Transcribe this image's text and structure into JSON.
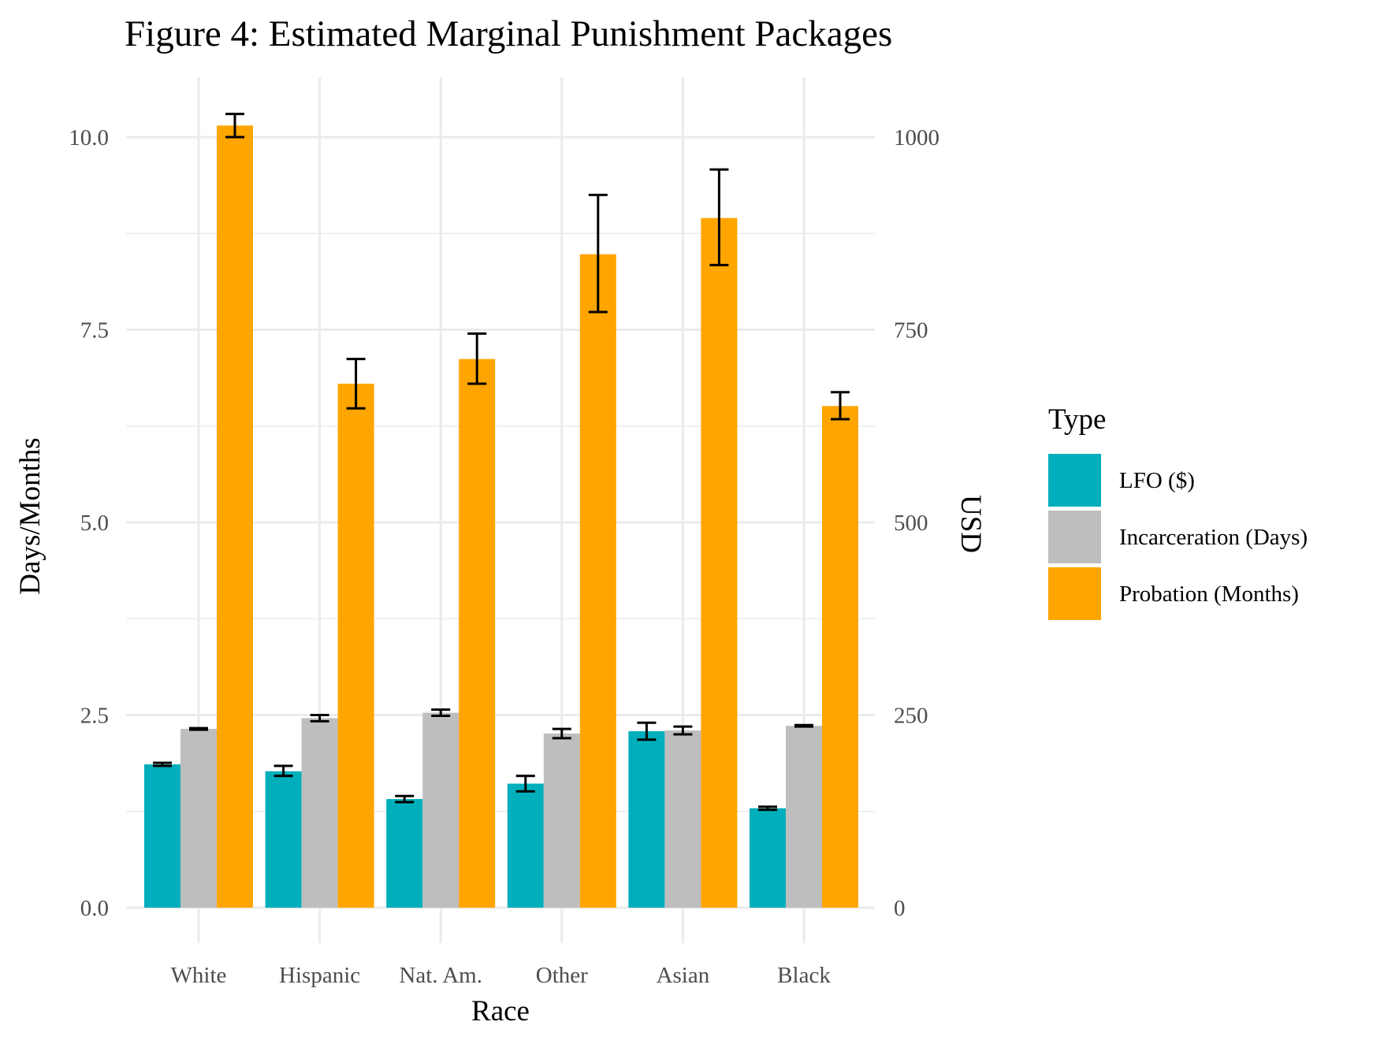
{
  "chart_data": {
    "type": "bar",
    "title": "Figure 4: Estimated Marginal Punishment Packages",
    "xlabel": "Race",
    "ylabel": "Days/Months",
    "y2label": "USD",
    "categories": [
      "White",
      "Hispanic",
      "Nat. Am.",
      "Other",
      "Asian",
      "Black"
    ],
    "ylim": [
      0,
      10.6
    ],
    "y_ticks": [
      "0.0",
      "2.5",
      "5.0",
      "7.5",
      "10.0"
    ],
    "y2_ticks": [
      "0",
      "250",
      "500",
      "750",
      "1000"
    ],
    "y2_scale": 100,
    "grid": true,
    "legend": {
      "title": "Type",
      "position": "right"
    },
    "series": [
      {
        "name": "LFO ($)",
        "color": "#00AFBB",
        "values": [
          1.86,
          1.77,
          1.41,
          1.61,
          2.29,
          1.29
        ],
        "err_low": [
          1.84,
          1.71,
          1.37,
          1.51,
          2.18,
          1.27
        ],
        "err_high": [
          1.88,
          1.84,
          1.45,
          1.71,
          2.4,
          1.31
        ]
      },
      {
        "name": "Incarceration (Days)",
        "color": "#BEBEBE",
        "values": [
          2.32,
          2.46,
          2.53,
          2.26,
          2.3,
          2.36
        ],
        "err_low": [
          2.31,
          2.42,
          2.49,
          2.2,
          2.25,
          2.35
        ],
        "err_high": [
          2.33,
          2.5,
          2.57,
          2.32,
          2.35,
          2.37
        ]
      },
      {
        "name": "Probation (Months)",
        "color": "#FFA500",
        "values": [
          10.15,
          6.8,
          7.12,
          8.48,
          8.95,
          6.51
        ],
        "err_low": [
          10.0,
          6.48,
          6.8,
          7.73,
          8.34,
          6.34
        ],
        "err_high": [
          10.3,
          7.12,
          7.45,
          9.25,
          9.58,
          6.69
        ]
      }
    ]
  }
}
